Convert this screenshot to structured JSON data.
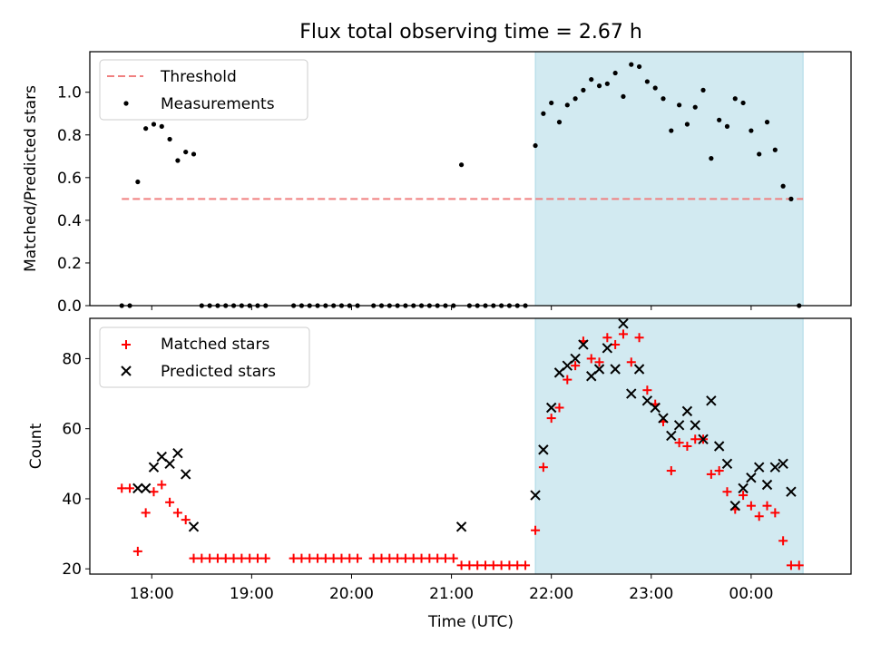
{
  "title": "Flux total observing time = 2.67 h",
  "colors": {
    "threshold": "#f08080",
    "measurement": "#000000",
    "matched": "#ff0000",
    "predicted": "#000000",
    "highlight_fill": "#add8e6"
  },
  "xaxis": {
    "label": "Time (UTC)",
    "ticks": [
      {
        "x": 18,
        "label": "18:00"
      },
      {
        "x": 19,
        "label": "19:00"
      },
      {
        "x": 20,
        "label": "20:00"
      },
      {
        "x": 21,
        "label": "21:00"
      },
      {
        "x": 22,
        "label": "22:00"
      },
      {
        "x": 23,
        "label": "23:00"
      },
      {
        "x": 24,
        "label": "00:00"
      }
    ]
  },
  "chart_data": [
    {
      "type": "scatter",
      "ylabel": "Matched/Predicted stars",
      "xlim": [
        17.38,
        25.0
      ],
      "ylim": [
        0.0,
        1.19
      ],
      "yticks": [
        0.0,
        0.2,
        0.4,
        0.6,
        0.8,
        1.0
      ],
      "yticklabels": [
        "0.0",
        "0.2",
        "0.4",
        "0.6",
        "0.8",
        "1.0"
      ],
      "highlight_span": [
        21.84,
        24.52
      ],
      "threshold": {
        "y": 0.5,
        "x": [
          17.7,
          24.52
        ]
      },
      "legend": {
        "placement": "top-left",
        "entries": [
          "Threshold",
          "Measurements"
        ]
      },
      "series": [
        {
          "name": "Measurements",
          "points": [
            [
              17.7,
              0.0
            ],
            [
              17.78,
              0.0
            ],
            [
              17.86,
              0.58
            ],
            [
              17.94,
              0.83
            ],
            [
              18.02,
              0.85
            ],
            [
              18.1,
              0.84
            ],
            [
              18.18,
              0.78
            ],
            [
              18.26,
              0.68
            ],
            [
              18.34,
              0.72
            ],
            [
              18.42,
              0.71
            ],
            [
              18.5,
              0.0
            ],
            [
              18.58,
              0.0
            ],
            [
              18.66,
              0.0
            ],
            [
              18.74,
              0.0
            ],
            [
              18.82,
              0.0
            ],
            [
              18.9,
              0.0
            ],
            [
              18.98,
              0.0
            ],
            [
              19.06,
              0.0
            ],
            [
              19.14,
              0.0
            ],
            [
              19.42,
              0.0
            ],
            [
              19.5,
              0.0
            ],
            [
              19.58,
              0.0
            ],
            [
              19.66,
              0.0
            ],
            [
              19.74,
              0.0
            ],
            [
              19.82,
              0.0
            ],
            [
              19.9,
              0.0
            ],
            [
              19.98,
              0.0
            ],
            [
              20.06,
              0.0
            ],
            [
              20.22,
              0.0
            ],
            [
              20.3,
              0.0
            ],
            [
              20.38,
              0.0
            ],
            [
              20.46,
              0.0
            ],
            [
              20.54,
              0.0
            ],
            [
              20.62,
              0.0
            ],
            [
              20.7,
              0.0
            ],
            [
              20.78,
              0.0
            ],
            [
              20.86,
              0.0
            ],
            [
              20.94,
              0.0
            ],
            [
              21.02,
              0.0
            ],
            [
              21.1,
              0.66
            ],
            [
              21.18,
              0.0
            ],
            [
              21.26,
              0.0
            ],
            [
              21.34,
              0.0
            ],
            [
              21.42,
              0.0
            ],
            [
              21.5,
              0.0
            ],
            [
              21.58,
              0.0
            ],
            [
              21.66,
              0.0
            ],
            [
              21.74,
              0.0
            ],
            [
              21.84,
              0.75
            ],
            [
              21.92,
              0.9
            ],
            [
              22.0,
              0.95
            ],
            [
              22.08,
              0.86
            ],
            [
              22.16,
              0.94
            ],
            [
              22.24,
              0.97
            ],
            [
              22.32,
              1.01
            ],
            [
              22.4,
              1.06
            ],
            [
              22.48,
              1.03
            ],
            [
              22.56,
              1.04
            ],
            [
              22.64,
              1.09
            ],
            [
              22.72,
              0.98
            ],
            [
              22.8,
              1.13
            ],
            [
              22.88,
              1.12
            ],
            [
              22.96,
              1.05
            ],
            [
              23.04,
              1.02
            ],
            [
              23.12,
              0.97
            ],
            [
              23.2,
              0.82
            ],
            [
              23.28,
              0.94
            ],
            [
              23.36,
              0.85
            ],
            [
              23.44,
              0.93
            ],
            [
              23.52,
              1.01
            ],
            [
              23.6,
              0.69
            ],
            [
              23.68,
              0.87
            ],
            [
              23.76,
              0.84
            ],
            [
              23.84,
              0.97
            ],
            [
              23.92,
              0.95
            ],
            [
              24.0,
              0.82
            ],
            [
              24.08,
              0.71
            ],
            [
              24.16,
              0.86
            ],
            [
              24.24,
              0.73
            ],
            [
              24.32,
              0.56
            ],
            [
              24.4,
              0.5
            ],
            [
              24.48,
              0.0
            ]
          ]
        }
      ]
    },
    {
      "type": "scatter",
      "ylabel": "Count",
      "xlabel": "Time (UTC)",
      "xlim": [
        17.38,
        25.0
      ],
      "ylim": [
        18.5,
        91.5
      ],
      "yticks": [
        20,
        40,
        60,
        80
      ],
      "yticklabels": [
        "20",
        "40",
        "60",
        "80"
      ],
      "highlight_span": [
        21.84,
        24.52
      ],
      "legend": {
        "placement": "top-left",
        "entries": [
          "Matched stars",
          "Predicted stars"
        ]
      },
      "series": [
        {
          "name": "Matched stars",
          "marker": "plus",
          "points": [
            [
              17.7,
              43
            ],
            [
              17.78,
              43
            ],
            [
              17.86,
              25
            ],
            [
              17.94,
              36
            ],
            [
              18.02,
              42
            ],
            [
              18.1,
              44
            ],
            [
              18.18,
              39
            ],
            [
              18.26,
              36
            ],
            [
              18.34,
              34
            ],
            [
              18.42,
              23
            ],
            [
              18.5,
              23
            ],
            [
              18.58,
              23
            ],
            [
              18.66,
              23
            ],
            [
              18.74,
              23
            ],
            [
              18.82,
              23
            ],
            [
              18.9,
              23
            ],
            [
              18.98,
              23
            ],
            [
              19.06,
              23
            ],
            [
              19.14,
              23
            ],
            [
              19.42,
              23
            ],
            [
              19.5,
              23
            ],
            [
              19.58,
              23
            ],
            [
              19.66,
              23
            ],
            [
              19.74,
              23
            ],
            [
              19.82,
              23
            ],
            [
              19.9,
              23
            ],
            [
              19.98,
              23
            ],
            [
              20.06,
              23
            ],
            [
              20.22,
              23
            ],
            [
              20.3,
              23
            ],
            [
              20.38,
              23
            ],
            [
              20.46,
              23
            ],
            [
              20.54,
              23
            ],
            [
              20.62,
              23
            ],
            [
              20.7,
              23
            ],
            [
              20.78,
              23
            ],
            [
              20.86,
              23
            ],
            [
              20.94,
              23
            ],
            [
              21.02,
              23
            ],
            [
              21.1,
              21
            ],
            [
              21.18,
              21
            ],
            [
              21.26,
              21
            ],
            [
              21.34,
              21
            ],
            [
              21.42,
              21
            ],
            [
              21.5,
              21
            ],
            [
              21.58,
              21
            ],
            [
              21.66,
              21
            ],
            [
              21.74,
              21
            ],
            [
              21.84,
              31
            ],
            [
              21.92,
              49
            ],
            [
              22.0,
              63
            ],
            [
              22.08,
              66
            ],
            [
              22.16,
              74
            ],
            [
              22.24,
              78
            ],
            [
              22.32,
              85
            ],
            [
              22.4,
              80
            ],
            [
              22.48,
              79
            ],
            [
              22.56,
              86
            ],
            [
              22.64,
              84
            ],
            [
              22.72,
              87
            ],
            [
              22.8,
              79
            ],
            [
              22.88,
              86
            ],
            [
              22.96,
              71
            ],
            [
              23.04,
              67
            ],
            [
              23.12,
              62
            ],
            [
              23.2,
              48
            ],
            [
              23.28,
              56
            ],
            [
              23.36,
              55
            ],
            [
              23.44,
              57
            ],
            [
              23.52,
              57
            ],
            [
              23.6,
              47
            ],
            [
              23.68,
              48
            ],
            [
              23.76,
              42
            ],
            [
              23.84,
              37
            ],
            [
              23.92,
              41
            ],
            [
              24.0,
              38
            ],
            [
              24.08,
              35
            ],
            [
              24.16,
              38
            ],
            [
              24.24,
              36
            ],
            [
              24.32,
              28
            ],
            [
              24.4,
              21
            ],
            [
              24.48,
              21
            ]
          ]
        },
        {
          "name": "Predicted stars",
          "marker": "cross",
          "points": [
            [
              17.86,
              43
            ],
            [
              17.94,
              43
            ],
            [
              18.02,
              49
            ],
            [
              18.1,
              52
            ],
            [
              18.18,
              50
            ],
            [
              18.26,
              53
            ],
            [
              18.34,
              47
            ],
            [
              18.42,
              32
            ],
            [
              21.1,
              32
            ],
            [
              21.84,
              41
            ],
            [
              21.92,
              54
            ],
            [
              22.0,
              66
            ],
            [
              22.08,
              76
            ],
            [
              22.16,
              78
            ],
            [
              22.24,
              80
            ],
            [
              22.32,
              84
            ],
            [
              22.4,
              75
            ],
            [
              22.48,
              77
            ],
            [
              22.56,
              83
            ],
            [
              22.64,
              77
            ],
            [
              22.72,
              90
            ],
            [
              22.8,
              70
            ],
            [
              22.88,
              77
            ],
            [
              22.96,
              68
            ],
            [
              23.04,
              66
            ],
            [
              23.12,
              63
            ],
            [
              23.2,
              58
            ],
            [
              23.28,
              61
            ],
            [
              23.36,
              65
            ],
            [
              23.44,
              61
            ],
            [
              23.52,
              57
            ],
            [
              23.6,
              68
            ],
            [
              23.68,
              55
            ],
            [
              23.76,
              50
            ],
            [
              23.84,
              38
            ],
            [
              23.92,
              43
            ],
            [
              24.0,
              46
            ],
            [
              24.08,
              49
            ],
            [
              24.16,
              44
            ],
            [
              24.24,
              49
            ],
            [
              24.32,
              50
            ],
            [
              24.4,
              42
            ]
          ]
        }
      ]
    }
  ]
}
